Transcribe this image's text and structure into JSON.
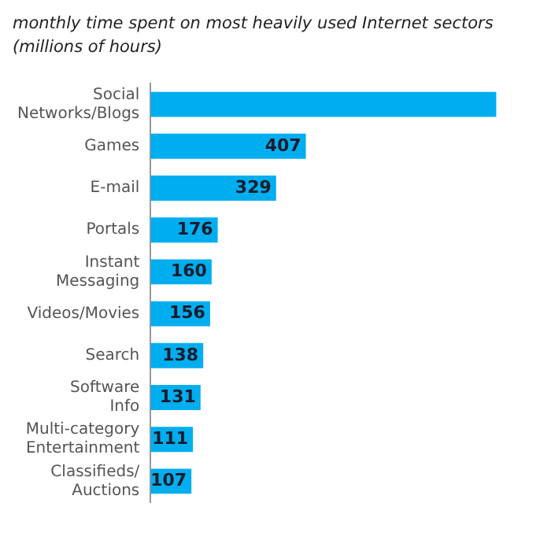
{
  "chart_data": {
    "type": "bar",
    "orientation": "horizontal",
    "title": "monthly time spent on most heavily used Internet sectors",
    "subtitle": "(millions of hours)",
    "categories": [
      "Social Networks/Blogs",
      "Games",
      "E-mail",
      "Portals",
      "Instant Messaging",
      "Videos/Movies",
      "Search",
      "Software Info",
      "Multi-category Entertainment",
      "Classifieds/ Auctions"
    ],
    "values": [
      906,
      407,
      329,
      176,
      160,
      156,
      138,
      131,
      111,
      107
    ],
    "value_labels": [
      null,
      "407",
      "329",
      "176",
      "160",
      "156",
      "138",
      "131",
      "111",
      "107"
    ],
    "color": "#00aeef"
  }
}
